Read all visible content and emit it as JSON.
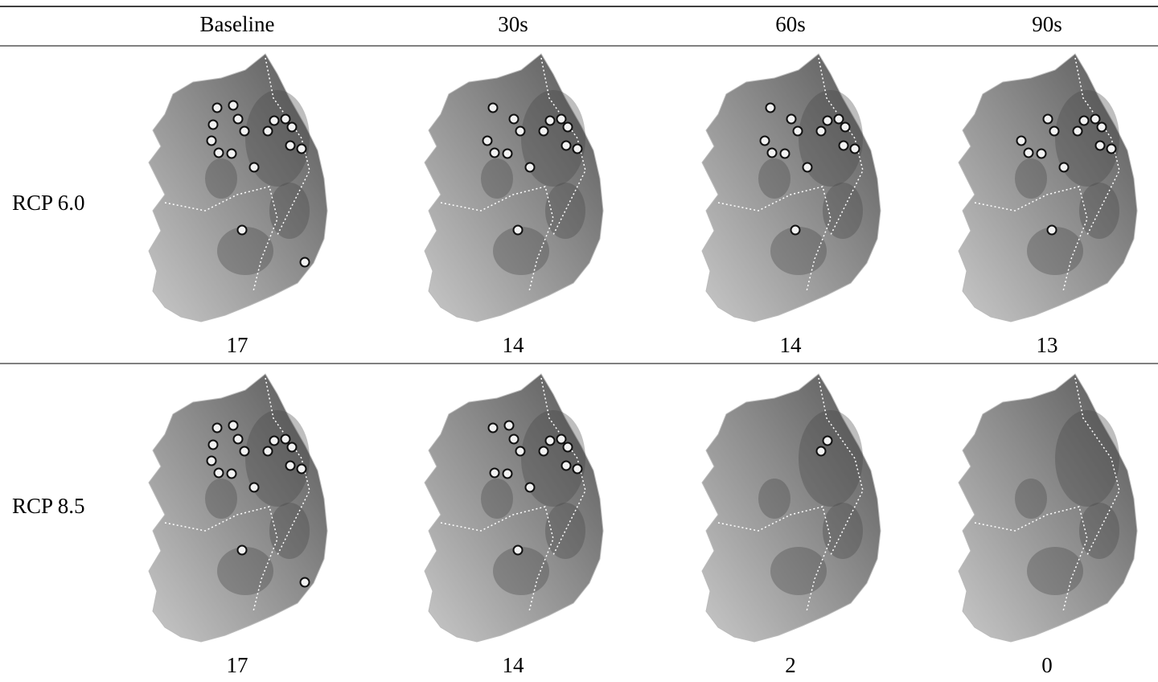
{
  "header": {
    "columns": [
      "Baseline",
      "30s",
      "60s",
      "90s"
    ]
  },
  "rows": [
    {
      "label": "RCP 6.0",
      "counts": [
        17,
        14,
        14,
        13
      ]
    },
    {
      "label": "RCP 8.5",
      "counts": [
        17,
        14,
        2,
        0
      ]
    }
  ]
}
